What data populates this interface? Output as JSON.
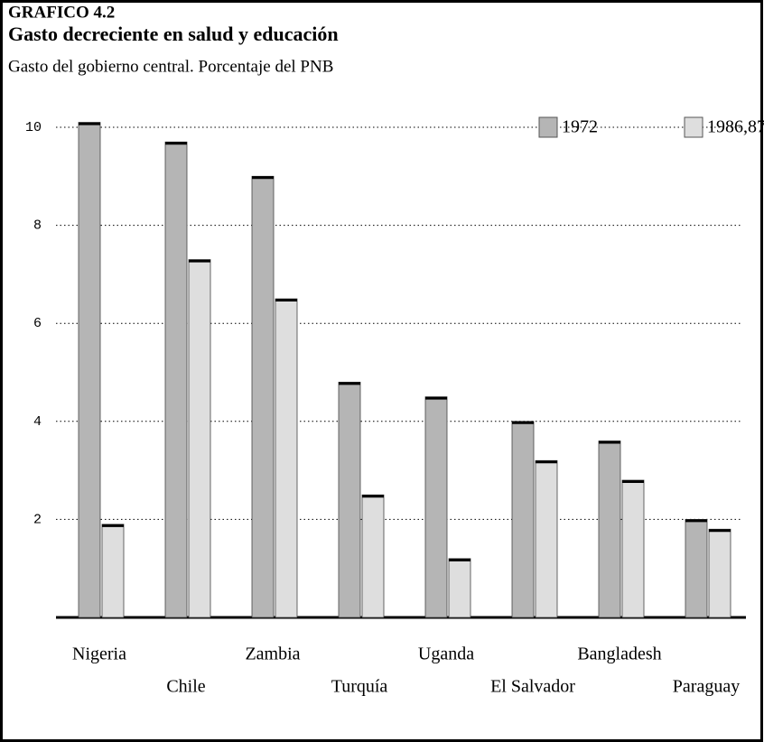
{
  "chart_data": {
    "type": "bar",
    "title": "GRAFICO 4.2",
    "subtitle": "Gasto decreciente en salud y educación",
    "y_label": "Gasto del gobierno central. Porcentaje del PNB",
    "categories": [
      "Nigeria",
      "Chile",
      "Zambia",
      "Turquía",
      "Uganda",
      "El Salvador",
      "Bangladesh",
      "Paraguay"
    ],
    "series": [
      {
        "name": "1972",
        "color": "#b5b5b5",
        "values": [
          10.1,
          9.7,
          9.0,
          4.8,
          4.5,
          4.0,
          3.6,
          2.0
        ]
      },
      {
        "name": "1986,87",
        "color": "#dedede",
        "values": [
          1.9,
          7.3,
          6.5,
          2.5,
          1.2,
          3.2,
          2.8,
          1.8
        ]
      }
    ],
    "ylim": [
      0,
      10
    ],
    "yticks": [
      2,
      4,
      6,
      8,
      10
    ],
    "grid": true,
    "legend": "top-right"
  }
}
